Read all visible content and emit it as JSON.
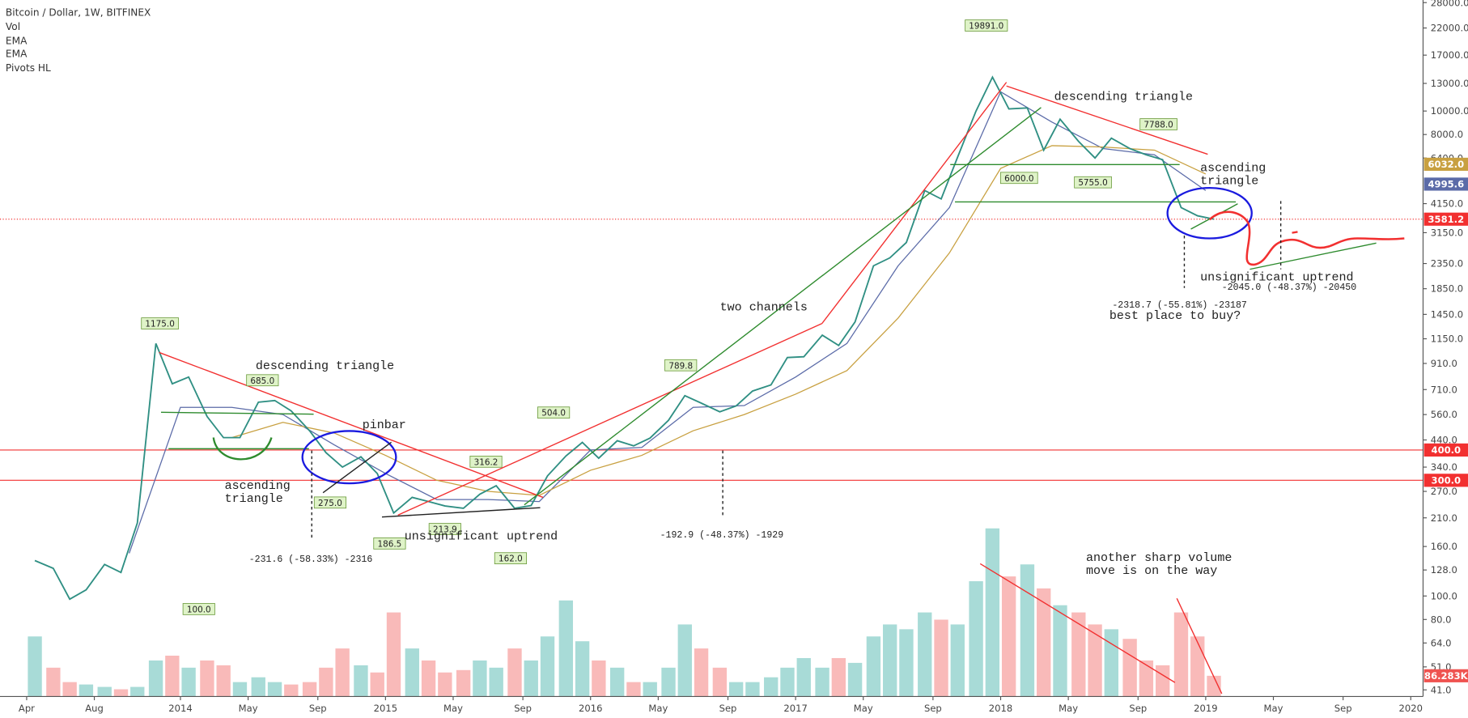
{
  "chart_data": {
    "type": "line",
    "title": "Bitcoin / Dollar, 1W, BITFINEX",
    "legend_items": [
      "Vol",
      "EMA",
      "EMA",
      "Pivots HL"
    ],
    "log_scale": true,
    "xlim": [
      2013.12,
      2020.06
    ],
    "ylim": [
      38.5,
      28700
    ],
    "y2lim": [
      0,
      2900000
    ],
    "xticks": [
      {
        "value": 2013.25,
        "label": "Apr"
      },
      {
        "value": 2013.58,
        "label": "Aug"
      },
      2014,
      {
        "value": 2014.33,
        "label": "May"
      },
      {
        "value": 2014.67,
        "label": "Sep"
      },
      2015,
      {
        "value": 2015.33,
        "label": "May"
      },
      {
        "value": 2015.67,
        "label": "Sep"
      },
      2016,
      {
        "value": 2016.33,
        "label": "May"
      },
      {
        "value": 2016.67,
        "label": "Sep"
      },
      2017,
      {
        "value": 2017.33,
        "label": "May"
      },
      {
        "value": 2017.67,
        "label": "Sep"
      },
      2018,
      {
        "value": 2018.33,
        "label": "May"
      },
      {
        "value": 2018.67,
        "label": "Sep"
      },
      2019,
      {
        "value": 2019.33,
        "label": "May"
      },
      {
        "value": 2019.67,
        "label": "Sep"
      },
      2020
    ],
    "yticks": [
      {
        "value": 28000,
        "label": "28000.0"
      },
      {
        "value": 22000,
        "label": "22000.0"
      },
      {
        "value": 17000,
        "label": "17000.0"
      },
      {
        "value": 13000,
        "label": "13000.0"
      },
      {
        "value": 10000,
        "label": "10000.0"
      },
      {
        "value": 8000,
        "label": "8000.0"
      },
      {
        "value": 6400,
        "label": "6400.0"
      },
      {
        "value": 4150,
        "label": "4150.0"
      },
      {
        "value": 3150,
        "label": "3150.0"
      },
      {
        "value": 2350,
        "label": "2350.0"
      },
      {
        "value": 1850,
        "label": "1850.0"
      },
      {
        "value": 1450,
        "label": "1450.0"
      },
      {
        "value": 1150,
        "label": "1150.0"
      },
      {
        "value": 910,
        "label": "910.0"
      },
      {
        "value": 710,
        "label": "710.0"
      },
      {
        "value": 560,
        "label": "560.0"
      },
      {
        "value": 440,
        "label": "440.0"
      },
      {
        "value": 340,
        "label": "340.0"
      },
      {
        "value": 270,
        "label": "270.0"
      },
      {
        "value": 210,
        "label": "210.0"
      },
      {
        "value": 160,
        "label": "160.0"
      },
      {
        "value": 128,
        "label": "128.0"
      },
      {
        "value": 100,
        "label": "100.0"
      },
      {
        "value": 80,
        "label": "80.0"
      },
      {
        "value": 64,
        "label": "64.0"
      },
      {
        "value": 51,
        "label": "51.0"
      },
      {
        "value": 41,
        "label": "41.0"
      }
    ],
    "x": [
      2013.29,
      2013.38,
      2013.46,
      2013.54,
      2013.63,
      2013.71,
      2013.79,
      2013.88,
      2013.96,
      2014.04,
      2014.13,
      2014.21,
      2014.29,
      2014.38,
      2014.46,
      2014.54,
      2014.63,
      2014.71,
      2014.79,
      2014.88,
      2014.96,
      2015.04,
      2015.13,
      2015.21,
      2015.29,
      2015.38,
      2015.46,
      2015.54,
      2015.63,
      2015.71,
      2015.79,
      2015.88,
      2015.96,
      2016.04,
      2016.13,
      2016.21,
      2016.29,
      2016.38,
      2016.46,
      2016.54,
      2016.63,
      2016.71,
      2016.79,
      2016.88,
      2016.96,
      2017.04,
      2017.13,
      2017.21,
      2017.29,
      2017.38,
      2017.46,
      2017.54,
      2017.63,
      2017.71,
      2017.79,
      2017.88,
      2017.96,
      2018.04,
      2018.13,
      2018.21,
      2018.29,
      2018.38,
      2018.46,
      2018.54,
      2018.63,
      2018.71,
      2018.79,
      2018.88,
      2018.96,
      2019.04
    ],
    "series": [
      {
        "name": "Bitcoin / Dollar",
        "color": "#2f8f83",
        "values": [
          140,
          130,
          97,
          106,
          135,
          125,
          200,
          1100,
          750,
          800,
          550,
          450,
          450,
          630,
          640,
          580,
          480,
          390,
          340,
          375,
          320,
          220,
          255,
          245,
          235,
          230,
          263,
          285,
          230,
          236,
          313,
          378,
          430,
          370,
          437,
          416,
          448,
          530,
          670,
          624,
          575,
          608,
          700,
          742,
          963,
          970,
          1190,
          1080,
          1350,
          2300,
          2480,
          2870,
          4700,
          4340,
          6450,
          10000,
          13800,
          10200,
          10300,
          6900,
          9250,
          7500,
          6400,
          7730,
          7000,
          6600,
          6300,
          4000,
          3700,
          3581
        ]
      }
    ],
    "emas": [
      {
        "color": "#5b6ba8",
        "x": [
          2013.75,
          2014.0,
          2014.25,
          2014.5,
          2014.75,
          2015.0,
          2015.25,
          2015.5,
          2015.75,
          2016.0,
          2016.25,
          2016.5,
          2016.75,
          2017.0,
          2017.25,
          2017.5,
          2017.75,
          2018.0,
          2018.25,
          2018.5,
          2018.75,
          2019.0
        ],
        "values": [
          150,
          600,
          600,
          560,
          420,
          320,
          250,
          250,
          245,
          400,
          410,
          600,
          610,
          800,
          1100,
          2300,
          4000,
          12000,
          9000,
          7000,
          6600,
          4700
        ]
      },
      {
        "color": "#c8a040",
        "x": [
          2014.25,
          2014.5,
          2014.75,
          2015.0,
          2015.25,
          2015.5,
          2015.75,
          2016.0,
          2016.25,
          2016.5,
          2016.75,
          2017.0,
          2017.25,
          2017.5,
          2017.75,
          2018.0,
          2018.25,
          2018.5,
          2018.75,
          2019.0
        ],
        "values": [
          450,
          520,
          470,
          380,
          300,
          270,
          260,
          330,
          380,
          480,
          560,
          680,
          850,
          1400,
          2600,
          5800,
          7200,
          7100,
          6900,
          5500
        ]
      }
    ],
    "volume": {
      "axis": "y2",
      "up_color": "#26a69a",
      "down_color": "#ef5350",
      "values": [
        250000,
        120000,
        60000,
        50000,
        40000,
        30000,
        40000,
        150000,
        170000,
        120000,
        150000,
        130000,
        60000,
        80000,
        60000,
        50000,
        60000,
        120000,
        200000,
        130000,
        100000,
        350000,
        200000,
        150000,
        100000,
        110000,
        150000,
        120000,
        200000,
        150000,
        250000,
        400000,
        230000,
        150000,
        120000,
        60000,
        60000,
        120000,
        300000,
        200000,
        120000,
        60000,
        60000,
        80000,
        120000,
        160000,
        120000,
        160000,
        140000,
        250000,
        300000,
        280000,
        350000,
        320000,
        300000,
        480000,
        700000,
        500000,
        550000,
        450000,
        380000,
        350000,
        300000,
        280000,
        240000,
        150000,
        130000,
        350000,
        250000,
        86283
      ],
      "last_label": {
        "value": 86283,
        "label": "86.283K",
        "color": "#ef5350"
      }
    },
    "levels": [
      {
        "value": 400,
        "label": "400.0",
        "color": "#f23030"
      },
      {
        "value": 300,
        "label": "300.0",
        "color": "#f23030"
      }
    ],
    "last_labels": [
      {
        "value": 6032,
        "label": "6032.0",
        "color": "#c8a040"
      },
      {
        "value": 4995.6,
        "label": "4995.6",
        "color": "#5b6ba8"
      },
      {
        "value": 3581.2,
        "label": "3581.2",
        "color": "#f23030"
      }
    ],
    "pivot_highs": {
      "x": [
        2013.9,
        2014.4,
        2015.49,
        2015.82,
        2016.44,
        2017.93,
        2018.77
      ],
      "values": [
        1175,
        685,
        316.2,
        504,
        789.8,
        19891,
        7788
      ],
      "value_labels": [
        "1175.0",
        "685.0",
        "316.2",
        "504.0",
        "789.8",
        "19891.0",
        "7788.0"
      ]
    },
    "pivot_lows": {
      "x": [
        2014.09,
        2014.73,
        2015.02,
        2015.29,
        2015.61,
        2018.09,
        2018.45
      ],
      "values": [
        100,
        275,
        186.5,
        213.9,
        162,
        6000,
        5755
      ],
      "value_labels": [
        "100.0",
        "275.0",
        "186.5",
        "213.9",
        "162.0",
        "6000.0",
        "5755.0"
      ]
    },
    "annotations": [
      {
        "lines": [
          "descending triangle"
        ]
      },
      {
        "lines": [
          "pinbar"
        ]
      },
      {
        "lines": [
          "ascending",
          "triangle"
        ]
      },
      {
        "lines": [
          "unsignificant uptrend"
        ]
      },
      {
        "lines": [
          "-231.6 (-58.33%) -2316"
        ]
      },
      {
        "lines": [
          "-192.9 (-48.37%) -1929"
        ]
      },
      {
        "lines": [
          "two channels"
        ]
      },
      {
        "lines": [
          "descending triangle"
        ]
      },
      {
        "lines": [
          "ascending",
          "triangle"
        ]
      },
      {
        "lines": [
          "unsignificant uptrend"
        ]
      },
      {
        "lines": [
          "-2045.0 (-48.37%) -20450"
        ]
      },
      {
        "lines": [
          "-2318.7 (-55.81%) -23187"
        ]
      },
      {
        "lines": [
          "best place to buy?"
        ]
      },
      {
        "lines": [
          "another sharp volume",
          "move is on the way"
        ]
      }
    ]
  }
}
